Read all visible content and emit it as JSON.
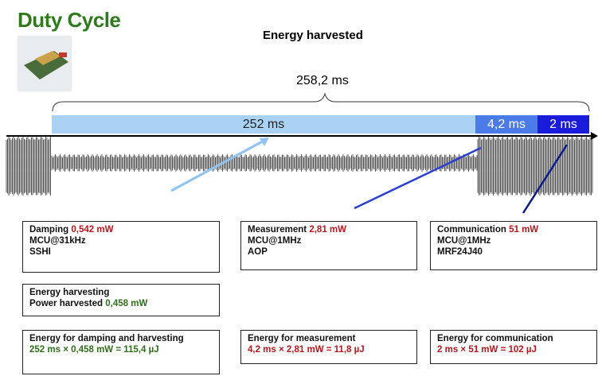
{
  "title": "Duty Cycle",
  "energy_label": "Energy harvested",
  "total": "258,2 ms",
  "segments": [
    "252 ms",
    "4,2 ms",
    "2 ms"
  ],
  "boxes": [
    {
      "label": "Damping",
      "value": "0,542 mW",
      "lines": [
        "MCU@31kHz",
        "SSHI"
      ]
    },
    {
      "label": "Measurement",
      "value": "2,81 mW",
      "lines": [
        "MCU@1MHz",
        "AOP"
      ]
    },
    {
      "label": "Communication",
      "value": "51 mW",
      "lines": [
        "MCU@1MHz",
        "MRF24J40"
      ]
    }
  ],
  "harvest": {
    "title": "Energy harvesting",
    "label": "Power harvested",
    "value": "0,458 mW"
  },
  "energy": [
    {
      "title": "Energy for damping and harvesting",
      "formula": "252 ms × 0,458 mW = 115,4 µJ"
    },
    {
      "title": "Energy for measurement",
      "formula": "4,2 ms × 2,81 mW = 11,8 µJ"
    },
    {
      "title": "Energy for communication",
      "formula": "2 ms × 51 mW = 102 µJ"
    }
  ]
}
